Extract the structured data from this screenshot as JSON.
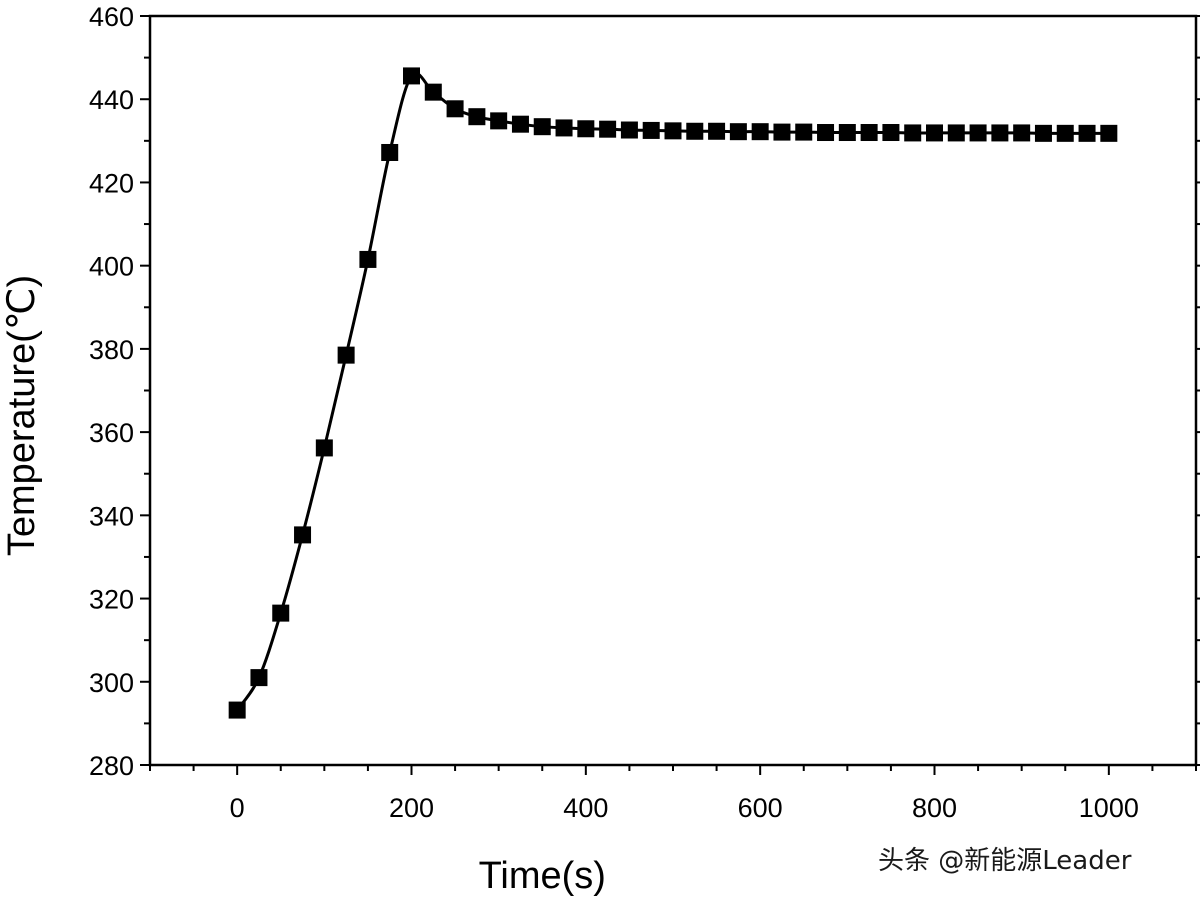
{
  "chart_data": {
    "type": "line",
    "title": "",
    "xlabel": "Time(s)",
    "ylabel": "Temperature(℃)",
    "xlim": [
      -100,
      1100
    ],
    "ylim": [
      280,
      460
    ],
    "xticks": [
      0,
      200,
      400,
      600,
      800,
      1000
    ],
    "yticks": [
      280,
      300,
      320,
      340,
      360,
      380,
      400,
      420,
      440,
      460
    ],
    "grid": false,
    "legend": "none",
    "marker": "square",
    "line_color": "#000000",
    "series": [
      {
        "x": [
          0,
          25,
          50,
          75,
          100,
          125,
          150,
          175,
          200,
          225,
          250,
          275,
          300,
          325,
          350,
          375,
          400,
          425,
          450,
          475,
          500,
          525,
          550,
          575,
          600,
          625,
          650,
          675,
          700,
          725,
          750,
          775,
          800,
          825,
          850,
          875,
          900,
          925,
          950,
          975,
          1000
        ],
        "values": [
          293.2,
          301.0,
          316.5,
          335.3,
          356.2,
          378.5,
          401.5,
          427.2,
          445.6,
          441.7,
          437.7,
          435.8,
          434.8,
          434.0,
          433.4,
          433.1,
          432.9,
          432.8,
          432.6,
          432.5,
          432.4,
          432.3,
          432.3,
          432.2,
          432.2,
          432.1,
          432.1,
          432.0,
          432.0,
          432.0,
          432.0,
          431.9,
          431.9,
          431.9,
          431.9,
          431.9,
          431.9,
          431.8,
          431.8,
          431.8,
          431.8
        ]
      }
    ]
  },
  "watermark": "头条 @新能源Leader"
}
